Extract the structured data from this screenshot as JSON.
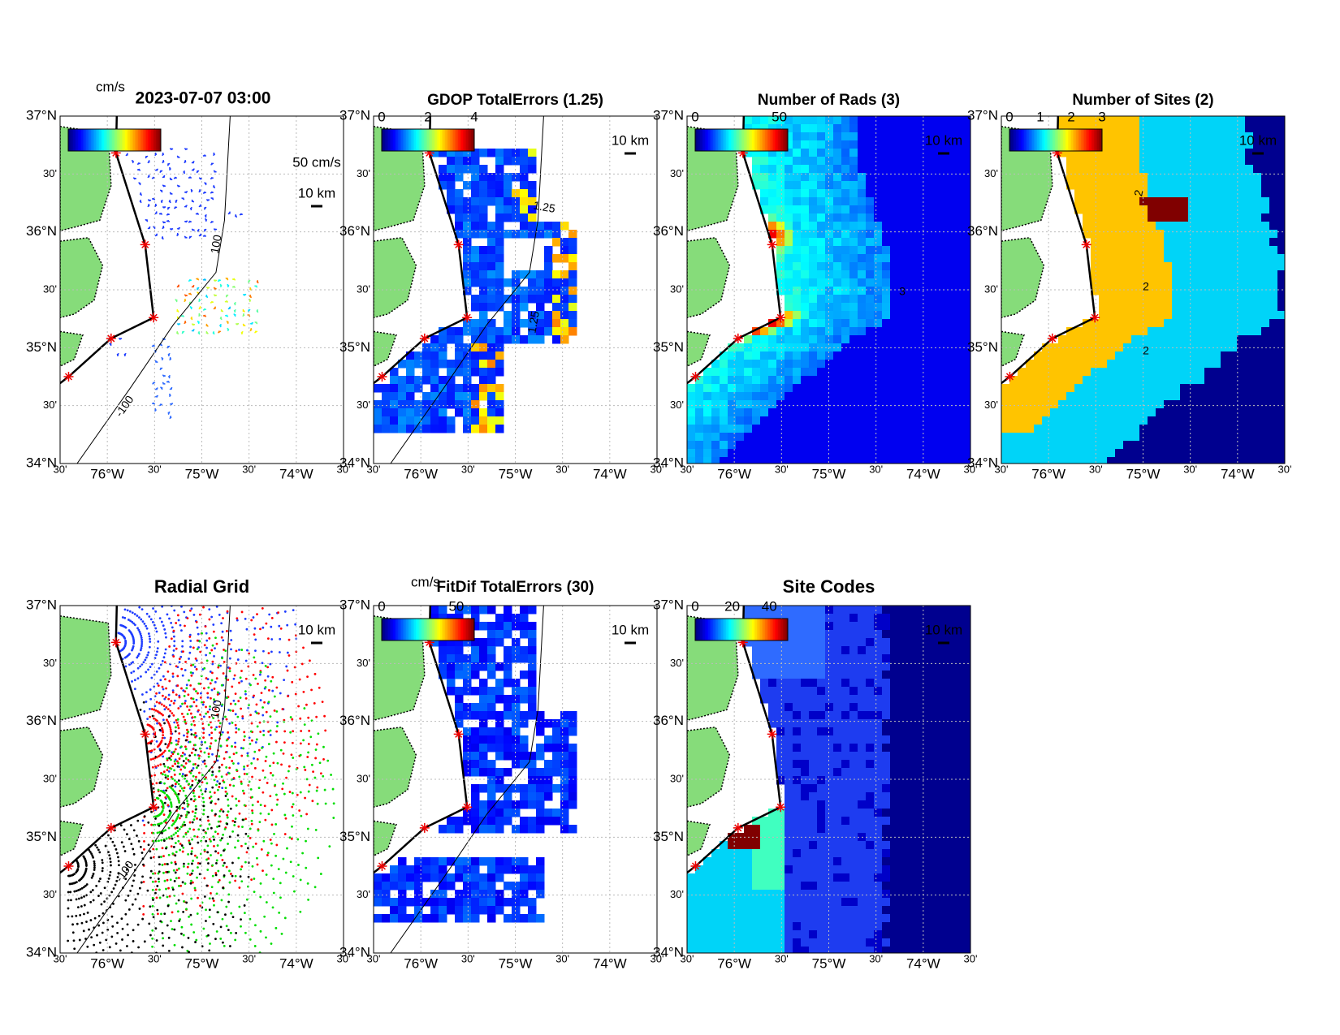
{
  "figure_title": "2023-07-07 03:00",
  "lat_labels": [
    "37°N",
    "30'",
    "36°N",
    "30'",
    "35°N",
    "30'",
    "34°N"
  ],
  "lon_labels": [
    "30'",
    "76°W",
    "30'",
    "75°W",
    "30'",
    "74°W",
    "30'"
  ],
  "panels": [
    {
      "unit": "cm/s",
      "vector_scale": "50 cm/s",
      "scale_bar": "10 km",
      "contour_labels": [
        "100",
        "-100"
      ]
    },
    {
      "title": "GDOP TotalErrors (1.25)",
      "clim": [
        0,
        4
      ],
      "colorbar_ticks": [
        0,
        2,
        4
      ],
      "scale_bar": "10 km",
      "contour_labels": [
        "1.25",
        "1.25"
      ]
    },
    {
      "title": "Number of Rads (3)",
      "clim": [
        0,
        55
      ],
      "colorbar_ticks": [
        0,
        50
      ],
      "scale_bar": "10 km",
      "contour_labels": [
        "3"
      ]
    },
    {
      "title": "Number of Sites (2)",
      "clim": [
        0,
        3
      ],
      "colorbar_ticks": [
        0,
        1,
        2,
        3
      ],
      "scale_bar": "10 km",
      "contour_labels": [
        "2",
        "2",
        "2"
      ]
    },
    {
      "title": "Radial Grid",
      "scale_bar": "10 km",
      "contour_labels": [
        "100",
        "-100"
      ]
    },
    {
      "title": "FitDif TotalErrors (30)",
      "unit": "cm/s",
      "clim": [
        0,
        62
      ],
      "colorbar_ticks": [
        0,
        50
      ],
      "scale_bar": "10 km"
    },
    {
      "title": "Site Codes",
      "clim": [
        0,
        50
      ],
      "colorbar_ticks": [
        0,
        20,
        40
      ],
      "scale_bar": "10 km"
    }
  ]
}
